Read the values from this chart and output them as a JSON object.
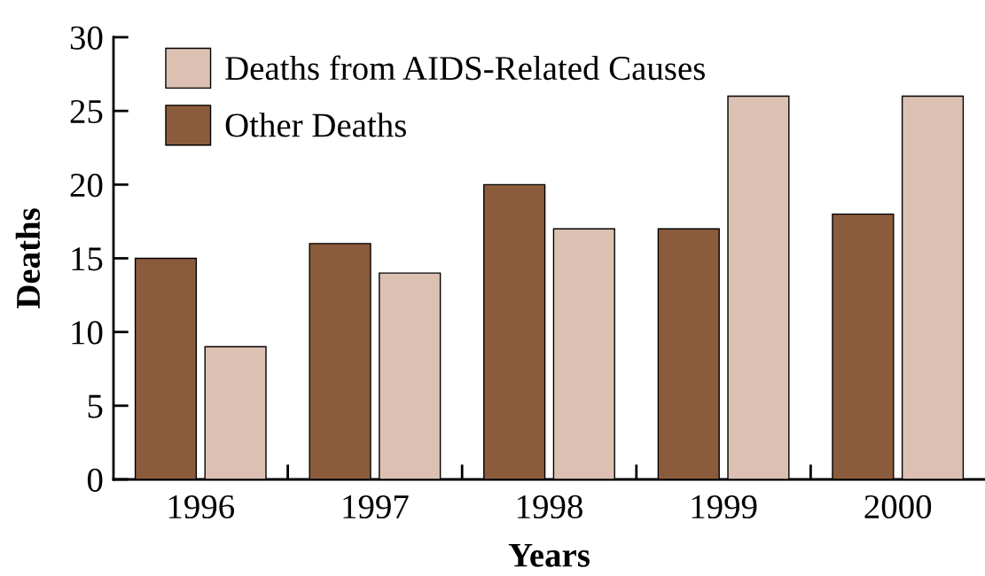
{
  "chart_data": {
    "type": "bar",
    "xlabel": "Years",
    "ylabel": "Deaths",
    "categories": [
      "1996",
      "1997",
      "1998",
      "1999",
      "2000"
    ],
    "series": [
      {
        "name": "Other Deaths",
        "color": "#8b5c3c",
        "values": [
          15,
          16,
          20,
          17,
          18
        ]
      },
      {
        "name": "Deaths from AIDS-Related Causes",
        "color": "#dcc1b2",
        "values": [
          9,
          14,
          17,
          26,
          26
        ]
      }
    ],
    "ylim": [
      0,
      30
    ],
    "yticks": [
      0,
      5,
      10,
      15,
      20,
      25,
      30
    ],
    "grid": false,
    "legend": "top left"
  }
}
